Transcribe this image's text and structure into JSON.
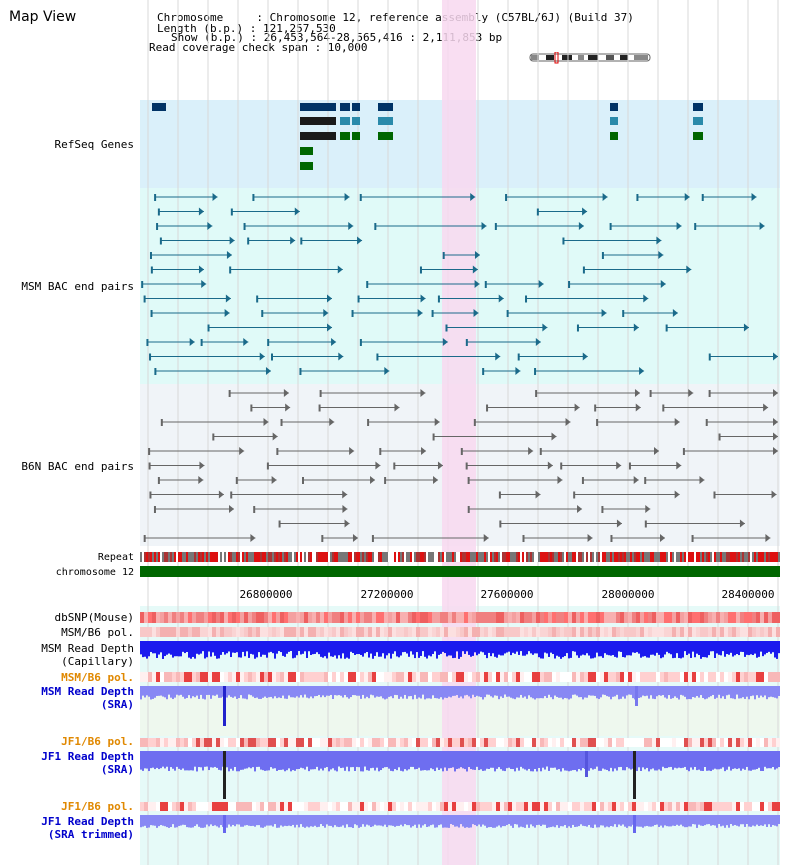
{
  "page": {
    "title": "Map View"
  },
  "header": {
    "line1": "Chromosome     : Chromosome 12, reference assembly (C57BL/6J) (Build 37)",
    "line2": "Length (b.p.) : 121,257,530",
    "line3": "Show (b.p.) : 26,453,564-28,565,416 : 2,111,853 bp",
    "line4": "Read coverage check span : 10,000"
  },
  "tracks": {
    "refseq": {
      "label": "RefSeq Genes",
      "color": "#000099"
    },
    "msm_bac": {
      "label": "MSM BAC end pairs",
      "color": "#005577"
    },
    "b6n_bac": {
      "label": "B6N BAC end pairs",
      "color": "#444444"
    },
    "repeat": {
      "label": "Repeat"
    },
    "chromosome": {
      "label": "chromosome 12"
    },
    "dbsnp": {
      "label": "dbSNP(Mouse)"
    },
    "msm_b6_pol_1": {
      "label": "MSM/B6 pol."
    },
    "msm_depth_cap": {
      "label_line1": "MSM Read Depth",
      "label_line2": "(Capillary)"
    },
    "msm_b6_pol_2": {
      "label": "MSM/B6 pol.",
      "color": "#e08800"
    },
    "msm_depth_sra": {
      "label_line1": "MSM Read Depth",
      "label_line2": "(SRA)",
      "color": "#0000cc"
    },
    "jf1_b6_pol_1": {
      "label": "JF1/B6 pol.",
      "color": "#e08800"
    },
    "jf1_depth_sra": {
      "label_line1": "JF1 Read Depth",
      "label_line2": "(SRA)",
      "color": "#0000cc"
    },
    "jf1_b6_pol_2": {
      "label": "JF1/B6 pol.",
      "color": "#e08800"
    },
    "jf1_depth_trim": {
      "label_line1": "JF1 Read Depth",
      "label_line2": "(SRA trimmed)",
      "color": "#0000cc"
    }
  },
  "axis": {
    "ticks": [
      "26800000",
      "27200000",
      "27600000",
      "28000000",
      "28400000"
    ]
  },
  "colors": {
    "highlight": "#f8d8f0",
    "refseq_bg": "#daf0fa",
    "msm_bg": "#e0faf8",
    "b6n_bg": "#f0f4f8",
    "chromosome_bar": "#006600"
  }
}
